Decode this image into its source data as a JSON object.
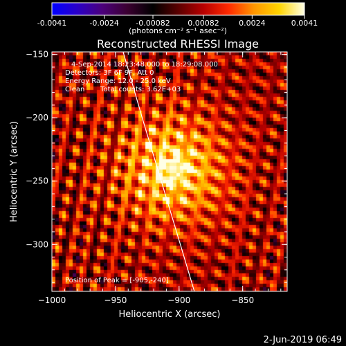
{
  "colorbar": {
    "tick_labels": [
      "-0.0041",
      "-0.0024",
      "-0.00082",
      "0.00082",
      "0.0024",
      "0.0041"
    ],
    "tick_values": [
      -0.0041,
      -0.0024,
      -0.00082,
      0.00082,
      0.0024,
      0.0041
    ],
    "range": [
      -0.0041,
      0.0041
    ],
    "units_label": "(photons cm⁻² s⁻¹ asec⁻²)",
    "gradient_colors": [
      "#0000ff",
      "#2a00c8",
      "#4b007a",
      "#3a0030",
      "#000000",
      "#5a0000",
      "#b80000",
      "#ff2a00",
      "#ff9600",
      "#ffd400",
      "#ffffe6"
    ]
  },
  "chart_data": {
    "type": "heatmap",
    "title": "Reconstructed RHESSI Image",
    "xlabel": "Heliocentric X (arcsec)",
    "ylabel": "Heliocentric Y (arcsec)",
    "xlim": [
      -1000,
      -815
    ],
    "ylim": [
      -337,
      -148
    ],
    "x_ticks": [
      -1000,
      -950,
      -900,
      -850
    ],
    "x_tick_labels": [
      "−1000",
      "−950",
      "−900",
      "−850"
    ],
    "y_ticks": [
      -150,
      -200,
      -250,
      -300
    ],
    "y_tick_labels": [
      "−150",
      "−200",
      "−250",
      "−300"
    ],
    "peak": [
      -905,
      -240
    ],
    "source_sigma_arcsec": 5,
    "limb_curve": [
      [
        -944,
        -148
      ],
      [
        -929,
        -200
      ],
      [
        -914,
        -250
      ],
      [
        -899,
        -300
      ],
      [
        -888,
        -337
      ]
    ],
    "annotations": {
      "time_range": "4-Sep-2014 18:23:48.000 to 18:29:08.000",
      "detectors": "Detectors: 3F 6F 9F, Att 0",
      "energy_range": "Energy Range: 12.0 - 25.0 keV",
      "method": "Clean",
      "total_counts": "Total counts: 3.62E+03",
      "peak_position": "Position of Peak = [-905,-240]"
    }
  },
  "footer": {
    "timestamp": "2-Jun-2019 06:49"
  },
  "colors": {
    "limb_line": "#ffffff",
    "axis": "#ffffff",
    "background": "#000000"
  }
}
